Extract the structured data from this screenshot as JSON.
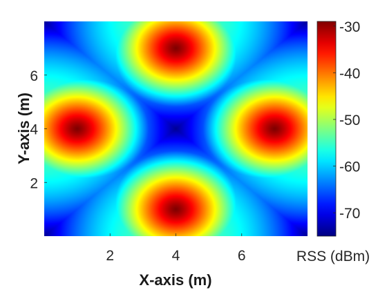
{
  "chart_data": {
    "type": "heatmap",
    "title": "",
    "xlabel": "X-axis (m)",
    "ylabel": "Y-axis (m)",
    "xlim": [
      0,
      8
    ],
    "ylim": [
      0,
      8
    ],
    "xticks": [
      2,
      4,
      6
    ],
    "yticks": [
      2,
      4,
      6
    ],
    "colormap": "jet",
    "background_color": "#000000",
    "colorbar": {
      "label": "RSS (dBm)",
      "range": [
        -75,
        -29
      ],
      "ticks": [
        -70,
        -60,
        -50,
        -40,
        -30
      ]
    },
    "sources": [
      {
        "x": 4,
        "y": 8,
        "peak_x": 4.0,
        "peak_y": 7.0
      },
      {
        "x": 4,
        "y": 0,
        "peak_x": 4.0,
        "peak_y": 1.0
      },
      {
        "x": 0,
        "y": 4,
        "peak_x": 1.0,
        "peak_y": 4.0
      },
      {
        "x": 8,
        "y": 4,
        "peak_x": 7.0,
        "peak_y": 4.0
      }
    ],
    "source_rss_dbm": -29,
    "edge_rss_dbm": -75,
    "coverage_radius_m": 4.0
  }
}
